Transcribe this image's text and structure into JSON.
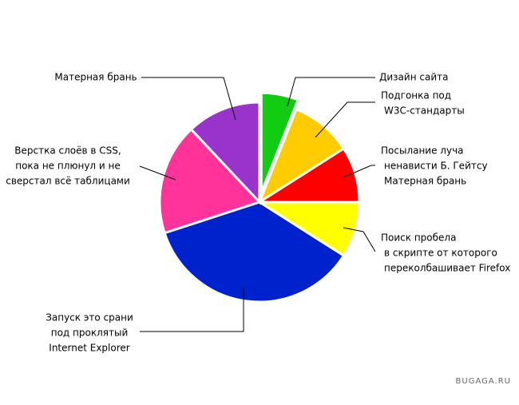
{
  "chart_data": {
    "type": "pie",
    "labels": [
      [
        "Дизайн сайта"
      ],
      [
        "Подгонка под",
        "W3C-стандарты"
      ],
      [
        "Посылание луча",
        "ненависти Б. Гейтсу",
        "Матерная брань"
      ],
      [
        "Поиск пробела",
        "в скрипте от которого",
        "переколбашивает Firefox"
      ],
      [
        "Запуск это срани",
        "под проклятый",
        "Internet Explorer"
      ],
      [
        "Верстка слоёв в CSS,",
        "пока не плюнул и не",
        "сверстал всё таблицами"
      ],
      [
        "Матерная брань"
      ]
    ],
    "values": [
      6,
      10,
      9,
      9,
      36,
      18,
      12
    ],
    "colors": [
      "#11cc11",
      "#ffcc00",
      "#ff0000",
      "#ffff00",
      "#0022cc",
      "#ff3399",
      "#9933cc"
    ],
    "exploded": [
      0
    ],
    "watermark": "BUGAGA.RU"
  }
}
